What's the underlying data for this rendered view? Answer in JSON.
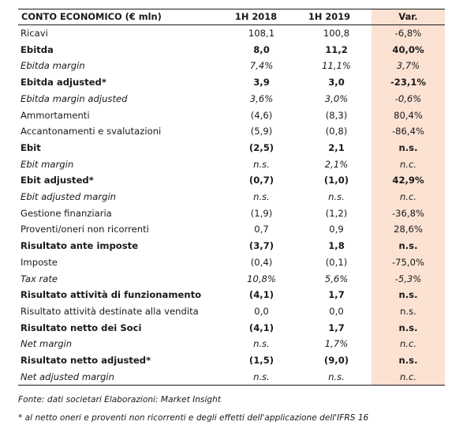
{
  "table": {
    "header": {
      "label": "CONTO ECONOMICO (€ mln)",
      "col1": "1H 2018",
      "col2": "1H 2019",
      "col3": "Var."
    },
    "rows": [
      {
        "label": "Ricavi",
        "v1": "108,1",
        "v2": "100,8",
        "v3": "-6,8%",
        "style": "normal"
      },
      {
        "label": "Ebitda",
        "v1": "8,0",
        "v2": "11,2",
        "v3": "40,0%",
        "style": "bold"
      },
      {
        "label": "Ebitda margin",
        "v1": "7,4%",
        "v2": "11,1%",
        "v3": "3,7%",
        "style": "italic"
      },
      {
        "label": "Ebitda adjusted*",
        "v1": "3,9",
        "v2": "3,0",
        "v3": "-23,1%",
        "style": "bold"
      },
      {
        "label": "Ebitda margin adjusted",
        "v1": "3,6%",
        "v2": "3,0%",
        "v3": "-0,6%",
        "style": "italic"
      },
      {
        "label": "Ammortamenti",
        "v1": "(4,6)",
        "v2": "(8,3)",
        "v3": "80,4%",
        "style": "normal"
      },
      {
        "label": "Accantonamenti e svalutazioni",
        "v1": "(5,9)",
        "v2": "(0,8)",
        "v3": "-86,4%",
        "style": "normal"
      },
      {
        "label": "Ebit",
        "v1": "(2,5)",
        "v2": "2,1",
        "v3": "n.s.",
        "style": "bold"
      },
      {
        "label": "Ebit margin",
        "v1": "n.s.",
        "v2": "2,1%",
        "v3": "n.c.",
        "style": "italic"
      },
      {
        "label": "Ebit adjusted*",
        "v1": "(0,7)",
        "v2": "(1,0)",
        "v3": "42,9%",
        "style": "bold"
      },
      {
        "label": "Ebit adjusted margin",
        "v1": "n.s.",
        "v2": "n.s.",
        "v3": "n.c.",
        "style": "italic"
      },
      {
        "label": "Gestione finanziaria",
        "v1": "(1,9)",
        "v2": "(1,2)",
        "v3": "-36,8%",
        "style": "normal"
      },
      {
        "label": "Proventi/oneri non ricorrenti",
        "v1": "0,7",
        "v2": "0,9",
        "v3": "28,6%",
        "style": "normal"
      },
      {
        "label": "Risultato ante imposte",
        "v1": "(3,7)",
        "v2": "1,8",
        "v3": "n.s.",
        "style": "bold"
      },
      {
        "label": "Imposte",
        "v1": "(0,4)",
        "v2": "(0,1)",
        "v3": "-75,0%",
        "style": "normal"
      },
      {
        "label": "Tax rate",
        "v1": "10,8%",
        "v2": "5,6%",
        "v3": "-5,3%",
        "style": "italic"
      },
      {
        "label": "Risultato attività di funzionamento",
        "v1": "(4,1)",
        "v2": "1,7",
        "v3": "n.s.",
        "style": "bold"
      },
      {
        "label": "Risultato attività destinate alla vendita",
        "v1": "0,0",
        "v2": "0,0",
        "v3": "n.s.",
        "style": "normal"
      },
      {
        "label": "Risultato netto dei Soci",
        "v1": "(4,1)",
        "v2": "1,7",
        "v3": "n.s.",
        "style": "bold"
      },
      {
        "label": "Net margin",
        "v1": "n.s.",
        "v2": "1,7%",
        "v3": "n.c.",
        "style": "italic"
      },
      {
        "label": "Risultato netto adjusted*",
        "v1": "(1,5)",
        "v2": "(9,0)",
        "v3": "n.s.",
        "style": "bold"
      },
      {
        "label": "Net adjusted margin",
        "v1": "n.s.",
        "v2": "n.s.",
        "v3": "n.c.",
        "style": "italic"
      }
    ],
    "var_column_color": "#fbe2d3"
  },
  "notes": {
    "source": "Fonte: dati societari  Elaborazioni: Market Insight",
    "footnote": "* al netto oneri e proventi non ricorrenti e degli effetti dell'applicazione dell'IFRS 16"
  }
}
